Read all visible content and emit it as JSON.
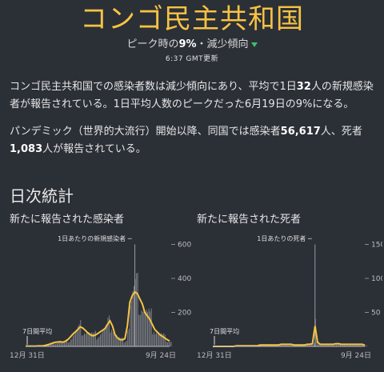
{
  "header": {
    "title": "コンゴ民主共和国",
    "subtitle_pre": "ピーク時の",
    "subtitle_pct": "9%",
    "subtitle_post": "・減少傾向",
    "updated": "6:37 GMT更新"
  },
  "summary": {
    "p1_a": "コンゴ民主共和国での感染者数は減少傾向にあり、平均で1日",
    "p1_num": "32",
    "p1_b": "人の新規感染者が報告されている。1日平均人数のピークだった6月19日の9%になる。",
    "p2_a": "パンデミック（世界的大流行）開始以降、同国では感染者",
    "p2_cases": "56,617",
    "p2_b": "人、死者",
    "p2_deaths": "1,083",
    "p2_c": "人が報告されている。"
  },
  "section_title": "日次統計",
  "colors": {
    "accent": "#f6c343",
    "bars": "#8a8d92",
    "trend_down": "#3fbf6f",
    "background": "#2b2f36"
  },
  "chart_data": [
    {
      "type": "bar",
      "title": "新たに報告された感染者",
      "bar_label": "1日あたりの新規感染者",
      "avg_label": "7日間平均",
      "x_start_label": "12月 31日",
      "x_end_label": "9月 24日",
      "yticks": [
        200,
        400,
        600
      ],
      "ylim": [
        0,
        640
      ],
      "weekly_avg": [
        2,
        2,
        2,
        2,
        2,
        3,
        3,
        4,
        6,
        10,
        15,
        20,
        24,
        26,
        28,
        25,
        30,
        40,
        55,
        72,
        85,
        100,
        115,
        108,
        95,
        80,
        70,
        62,
        66,
        75,
        85,
        95,
        105,
        130,
        150,
        120,
        70,
        50,
        40,
        38,
        45,
        120,
        260,
        300,
        320,
        310,
        280,
        250,
        200,
        180,
        160,
        130,
        100,
        85,
        70,
        60,
        50,
        40,
        32
      ],
      "daily_max": 600
    },
    {
      "type": "bar",
      "title": "新たに報告された死者",
      "bar_label": "1日あたりの死者",
      "avg_label": "7日間平均",
      "x_start_label": "12月 31日",
      "x_end_label": "9月 24日",
      "yticks": [
        50,
        100,
        150
      ],
      "ylim": [
        0,
        160
      ],
      "weekly_avg": [
        0,
        0,
        0,
        0,
        0,
        0,
        0,
        0,
        0,
        1,
        1,
        1,
        1,
        1,
        1,
        1,
        1,
        1,
        2,
        2,
        2,
        2,
        2,
        2,
        2,
        2,
        3,
        3,
        3,
        3,
        3,
        2,
        2,
        2,
        2,
        2,
        3,
        3,
        4,
        30,
        6,
        3,
        3,
        3,
        3,
        3,
        3,
        4,
        4,
        3,
        3,
        3,
        3,
        3,
        3,
        3,
        3,
        3,
        2
      ],
      "daily_max": 150
    }
  ]
}
